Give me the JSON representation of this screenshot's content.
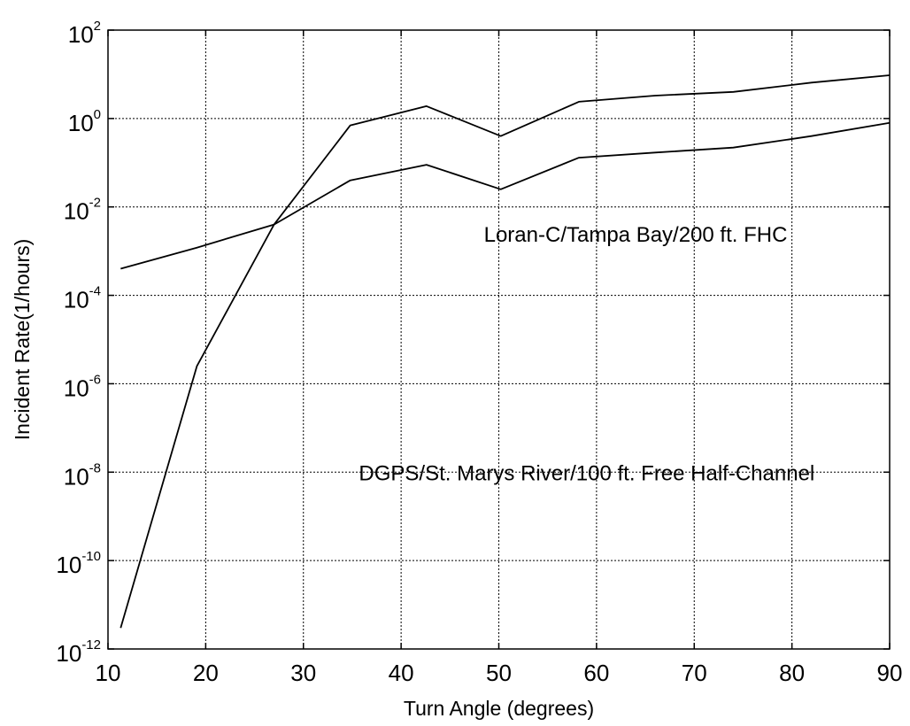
{
  "chart_data": {
    "type": "line",
    "xlabel": "Turn Angle (degrees)",
    "ylabel": "Incident Rate(1/hours)",
    "xlim": [
      10,
      90
    ],
    "ylim": [
      1e-12,
      100
    ],
    "y_scale": "log",
    "grid": true,
    "x_ticks": [
      10,
      20,
      30,
      40,
      50,
      60,
      70,
      80,
      90
    ],
    "y_ticks": [
      {
        "base": "10",
        "exp": "-12",
        "value": 1e-12
      },
      {
        "base": "10",
        "exp": "-10",
        "value": 1e-10
      },
      {
        "base": "10",
        "exp": "-8",
        "value": 1e-08
      },
      {
        "base": "10",
        "exp": "-6",
        "value": 1e-06
      },
      {
        "base": "10",
        "exp": "-4",
        "value": 0.0001
      },
      {
        "base": "10",
        "exp": "-2",
        "value": 0.01
      },
      {
        "base": "10",
        "exp": "0",
        "value": 1
      },
      {
        "base": "10",
        "exp": "2",
        "value": 100
      }
    ],
    "series": [
      {
        "x": [
          11.3,
          19.1,
          27,
          34.8,
          42.6,
          50.2,
          58.2,
          66,
          74,
          82,
          90
        ],
        "y": [
          0.0004,
          0.0012,
          0.004,
          0.04,
          0.09,
          0.025,
          0.13,
          0.17,
          0.22,
          0.4,
          0.8
        ]
      },
      {
        "x": [
          11.3,
          19.1,
          27,
          34.8,
          42.6,
          50.2,
          58.2,
          66,
          74,
          82,
          90
        ],
        "y": [
          3e-12,
          2.5e-06,
          0.004,
          0.7,
          1.9,
          0.4,
          2.4,
          3.3,
          4,
          6.5,
          9.5
        ]
      }
    ],
    "annotations": [
      {
        "text": "Loran-C/Tampa Bay/200 ft. FHC",
        "x": 64,
        "y": 0.0025
      },
      {
        "text": "DGPS/St. Marys River/100 ft. Free Half-Channel",
        "x": 59,
        "y": 1e-08
      }
    ]
  }
}
